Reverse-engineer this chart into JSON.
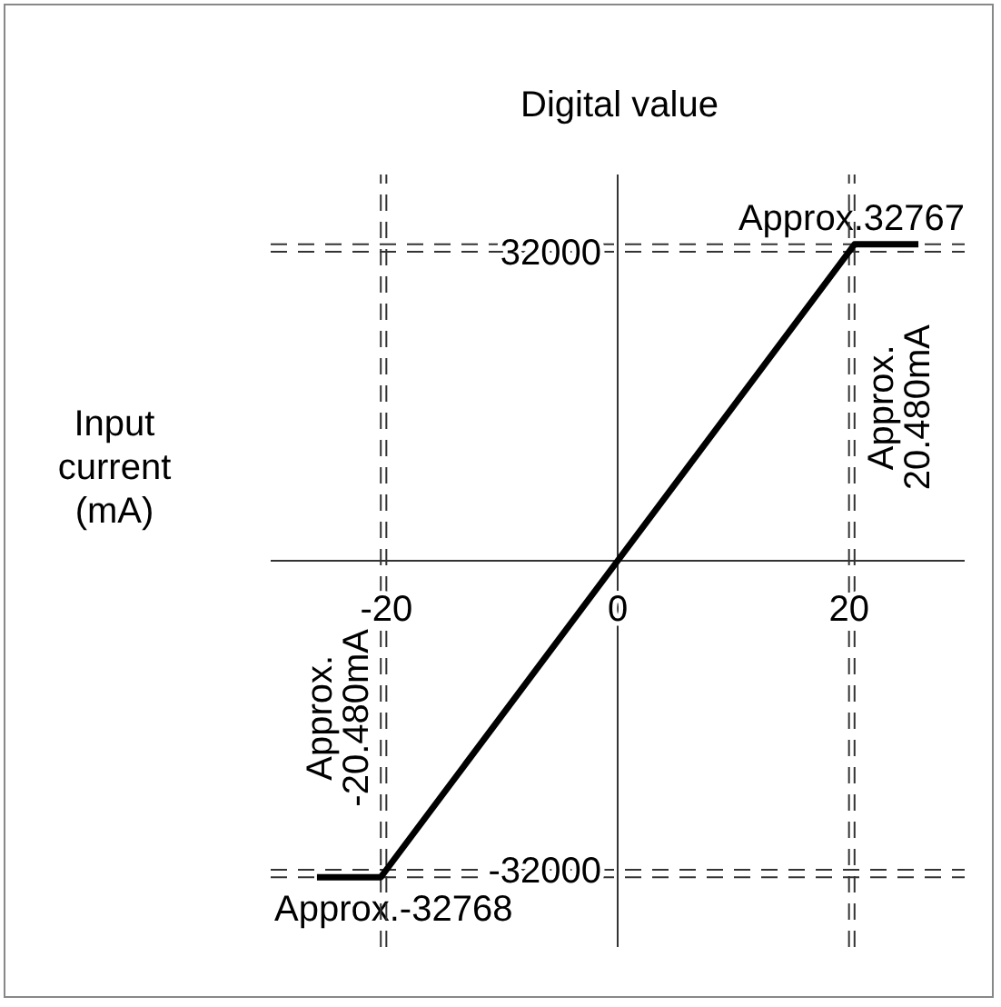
{
  "chart_data": {
    "type": "line",
    "xlabel": "Input current (mA)",
    "ylabel": "Digital value",
    "x": [
      -26,
      -20.48,
      -20,
      0,
      20,
      20.48,
      26
    ],
    "series": [
      {
        "color": "#000000",
        "values": [
          -32768,
          -32768,
          -32000,
          0,
          32000,
          32767,
          32767
        ]
      }
    ],
    "xlim": [
      -30,
      30
    ],
    "xticks": [
      -20,
      0,
      20
    ],
    "ylim": [
      -40000,
      40000
    ],
    "yticks": [
      -32000,
      32000
    ],
    "ref_lines": [
      {
        "axis": "y",
        "value": 32767,
        "label": "Approx.32767",
        "color": "#333333",
        "line_style": "dashed"
      },
      {
        "axis": "y",
        "value": 32000,
        "color": "#333333",
        "line_style": "dashed"
      },
      {
        "axis": "y",
        "value": -32000,
        "color": "#333333",
        "line_style": "dashed"
      },
      {
        "axis": "y",
        "value": -32768,
        "label": "Approx.-32768",
        "color": "#333333",
        "line_style": "dashed"
      },
      {
        "axis": "x",
        "value": -20.48,
        "label": "Approx. -20.480mA",
        "color": "#333333",
        "line_style": "dashed"
      },
      {
        "axis": "x",
        "value": -20,
        "color": "#333333",
        "line_style": "dashed"
      },
      {
        "axis": "x",
        "value": 20,
        "color": "#333333",
        "line_style": "dashed"
      },
      {
        "axis": "x",
        "value": 20.48,
        "label": "Approx. 20.480mA",
        "color": "#333333",
        "line_style": "dashed"
      }
    ],
    "line_style": "solid"
  }
}
